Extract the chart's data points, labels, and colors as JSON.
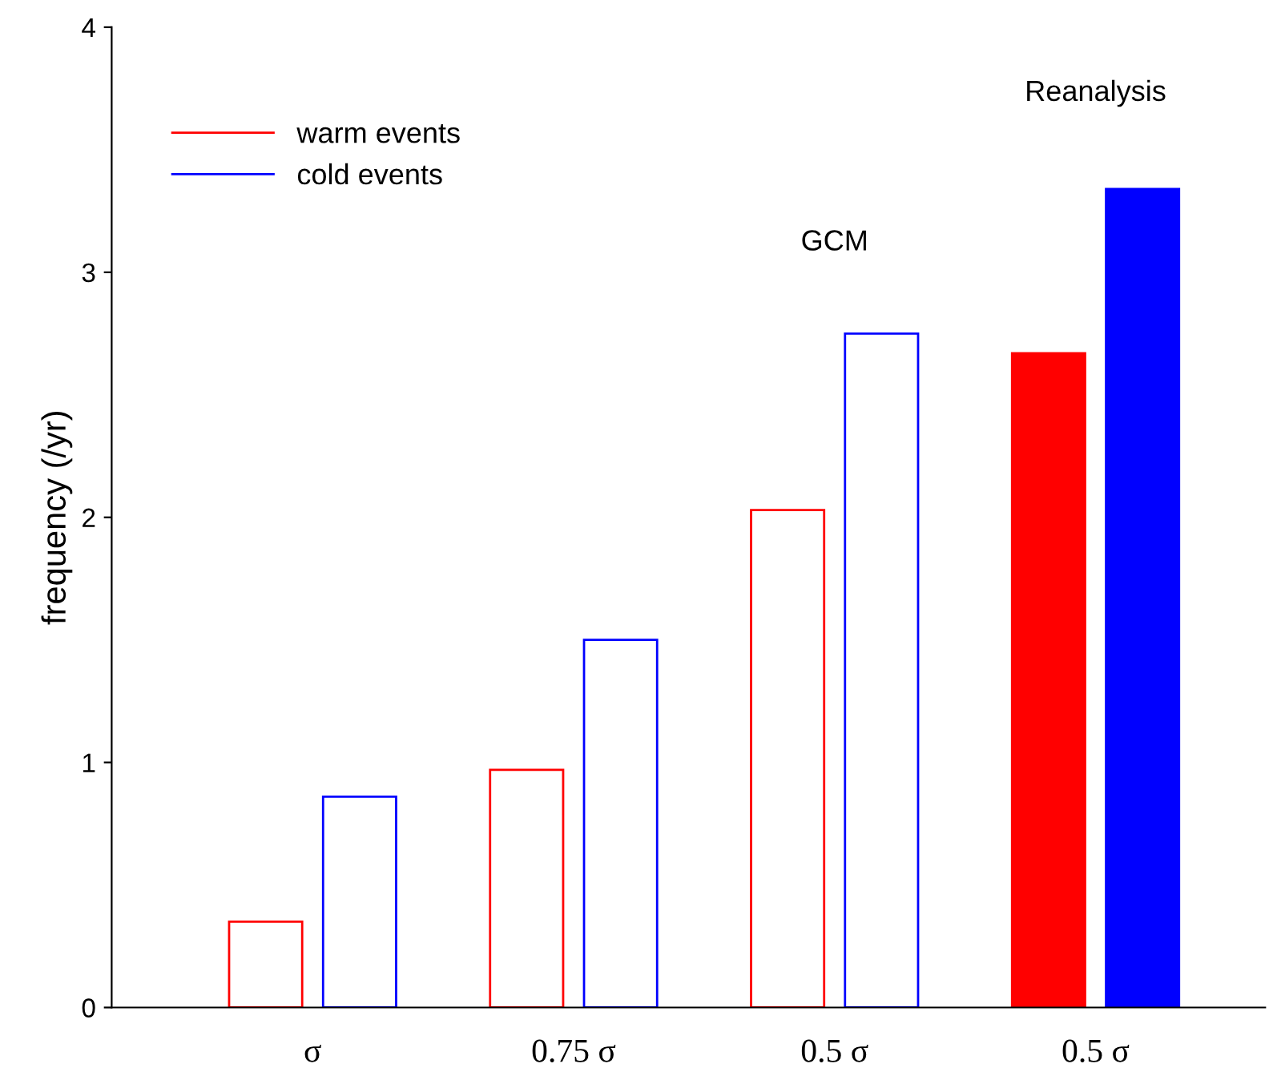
{
  "chart_data": {
    "type": "bar",
    "ylabel": "frequency (/yr)",
    "categories": [
      "σ",
      "0.75 σ",
      "0.5 σ",
      "0.5 σ"
    ],
    "series": [
      {
        "name": "warm events",
        "color": "#ff0000",
        "values": [
          0.35,
          0.97,
          2.03,
          null
        ]
      },
      {
        "name": "cold events",
        "color": "#0000ff",
        "values": [
          0.86,
          1.5,
          2.75,
          null
        ]
      },
      {
        "color": "#ff0000",
        "values": [
          null,
          null,
          null,
          2.67
        ]
      },
      {
        "color": "#0000ff",
        "values": [
          null,
          null,
          null,
          3.34
        ]
      }
    ],
    "annotations": [
      "GCM",
      "Reanalysis"
    ],
    "ylim": [
      0,
      4
    ],
    "yticks": [
      0,
      1,
      2,
      3,
      4
    ],
    "grid": false,
    "legend": "top left"
  }
}
